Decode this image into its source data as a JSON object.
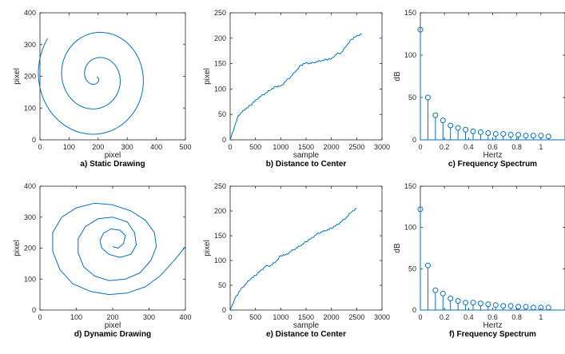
{
  "colors": {
    "line": "#0072BD",
    "axis": "#262626",
    "background": "#ffffff"
  },
  "chart_data": [
    {
      "id": "a",
      "type": "line",
      "caption": "a) Static Drawing",
      "xlabel": "pixel",
      "ylabel": "pixel",
      "xlim": [
        0,
        500
      ],
      "ylim": [
        0,
        400
      ],
      "xticks": [
        0,
        100,
        200,
        300,
        400,
        500
      ],
      "yticks": [
        0,
        100,
        200,
        300,
        400
      ],
      "spiral": {
        "center": [
          195,
          198
        ],
        "turns": 2.6,
        "r_end": 208,
        "start_angle_deg": 0
      },
      "series": [
        {
          "x": [
            195,
            210,
            230,
            250,
            260,
            240,
            200,
            160,
            140,
            150,
            180,
            215,
            245,
            265,
            290,
            285,
            260,
            220,
            180,
            145,
            120,
            110,
            100,
            105,
            125,
            150,
            175,
            210,
            250,
            295,
            330,
            360,
            385,
            395,
            398
          ],
          "y": [
            198,
            190,
            200,
            225,
            250,
            275,
            290,
            275,
            245,
            215,
            190,
            170,
            175,
            190,
            225,
            260,
            300,
            325,
            330,
            315,
            285,
            250,
            210,
            170,
            130,
            100,
            85,
            70,
            65,
            75,
            100,
            135,
            165,
            190,
            210
          ]
        }
      ]
    },
    {
      "id": "b",
      "type": "line",
      "caption": "b) Distance to Center",
      "xlabel": "sample",
      "ylabel": "pixel",
      "xlim": [
        0,
        3000
      ],
      "ylim": [
        0,
        250
      ],
      "xticks": [
        0,
        500,
        1000,
        1500,
        2000,
        2500,
        3000
      ],
      "yticks": [
        0,
        50,
        100,
        150,
        200,
        250
      ],
      "series": [
        {
          "x": [
            0,
            50,
            100,
            150,
            200,
            300,
            400,
            500,
            600,
            700,
            800,
            900,
            1000,
            1100,
            1200,
            1300,
            1400,
            1500,
            1600,
            1700,
            1800,
            1900,
            2000,
            2100,
            2200,
            2300,
            2400,
            2500,
            2600
          ],
          "y": [
            0,
            15,
            30,
            45,
            52,
            60,
            68,
            78,
            85,
            92,
            98,
            105,
            106,
            115,
            125,
            135,
            147,
            152,
            150,
            154,
            155,
            158,
            160,
            168,
            172,
            185,
            198,
            205,
            208
          ]
        }
      ]
    },
    {
      "id": "c",
      "type": "stem",
      "caption": "c) Frequency Spectrum",
      "xlabel": "Hertz",
      "ylabel": "dB",
      "xlim": [
        0,
        1.2
      ],
      "ylim": [
        0,
        150
      ],
      "xticks": [
        0,
        0.2,
        0.4,
        0.6,
        0.8,
        1
      ],
      "yticks": [
        0,
        50,
        100,
        150
      ],
      "x": [
        0,
        0.0625,
        0.125,
        0.1875,
        0.25,
        0.3125,
        0.375,
        0.4375,
        0.5,
        0.5625,
        0.625,
        0.6875,
        0.75,
        0.8125,
        0.875,
        0.9375,
        1.0,
        1.0625
      ],
      "values": [
        130,
        50,
        29,
        23,
        17,
        14,
        12,
        10,
        9,
        8,
        7,
        7,
        6,
        6,
        5,
        5,
        5,
        4
      ]
    },
    {
      "id": "d",
      "type": "line",
      "caption": "d) Dynamic Drawing",
      "xlabel": "pixel",
      "ylabel": "pixel",
      "xlim": [
        0,
        400
      ],
      "ylim": [
        0,
        400
      ],
      "xticks": [
        0,
        100,
        200,
        300,
        400
      ],
      "yticks": [
        0,
        100,
        200,
        300,
        400
      ],
      "series": [
        {
          "x": [
            200,
            215,
            230,
            235,
            220,
            195,
            175,
            165,
            170,
            190,
            220,
            250,
            265,
            260,
            240,
            200,
            160,
            125,
            105,
            105,
            120,
            150,
            190,
            235,
            275,
            305,
            320,
            315,
            290,
            250,
            200,
            150,
            100,
            60,
            35,
            35,
            55,
            90,
            140,
            190,
            240,
            290,
            330,
            365,
            390,
            400
          ],
          "y": [
            205,
            200,
            215,
            240,
            258,
            262,
            248,
            225,
            200,
            180,
            170,
            180,
            210,
            250,
            285,
            300,
            295,
            270,
            230,
            185,
            140,
            110,
            95,
            100,
            120,
            160,
            205,
            250,
            290,
            320,
            340,
            345,
            330,
            300,
            250,
            190,
            130,
            85,
            60,
            50,
            55,
            75,
            110,
            155,
            190,
            205
          ]
        }
      ]
    },
    {
      "id": "e",
      "type": "line",
      "caption": "e) Distance to Center",
      "xlabel": "sample",
      "ylabel": "pixel",
      "xlim": [
        0,
        3000
      ],
      "ylim": [
        0,
        250
      ],
      "xticks": [
        0,
        500,
        1000,
        1500,
        2000,
        2500,
        3000
      ],
      "yticks": [
        0,
        50,
        100,
        150,
        200,
        250
      ],
      "series": [
        {
          "x": [
            0,
            50,
            100,
            200,
            300,
            400,
            500,
            600,
            700,
            800,
            900,
            1000,
            1100,
            1200,
            1300,
            1400,
            1500,
            1600,
            1700,
            1800,
            1900,
            2000,
            2100,
            2200,
            2300,
            2400,
            2500
          ],
          "y": [
            0,
            12,
            25,
            40,
            52,
            62,
            70,
            80,
            88,
            90,
            97,
            110,
            112,
            118,
            125,
            130,
            138,
            145,
            152,
            158,
            160,
            165,
            172,
            178,
            188,
            198,
            205
          ]
        }
      ]
    },
    {
      "id": "f",
      "type": "stem",
      "caption": "f) Frequency Spectrum",
      "xlabel": "Hertz",
      "ylabel": "dB",
      "xlim": [
        0,
        1.2
      ],
      "ylim": [
        0,
        150
      ],
      "xticks": [
        0,
        0.2,
        0.4,
        0.6,
        0.8,
        1
      ],
      "yticks": [
        0,
        50,
        100,
        150
      ],
      "x": [
        0,
        0.0625,
        0.125,
        0.1875,
        0.25,
        0.3125,
        0.375,
        0.4375,
        0.5,
        0.5625,
        0.625,
        0.6875,
        0.75,
        0.8125,
        0.875,
        0.9375,
        1.0,
        1.0625
      ],
      "values": [
        122,
        54,
        24,
        20,
        14,
        11,
        9,
        9,
        8,
        7,
        6,
        5,
        5,
        4,
        4,
        3,
        3,
        3
      ]
    }
  ]
}
